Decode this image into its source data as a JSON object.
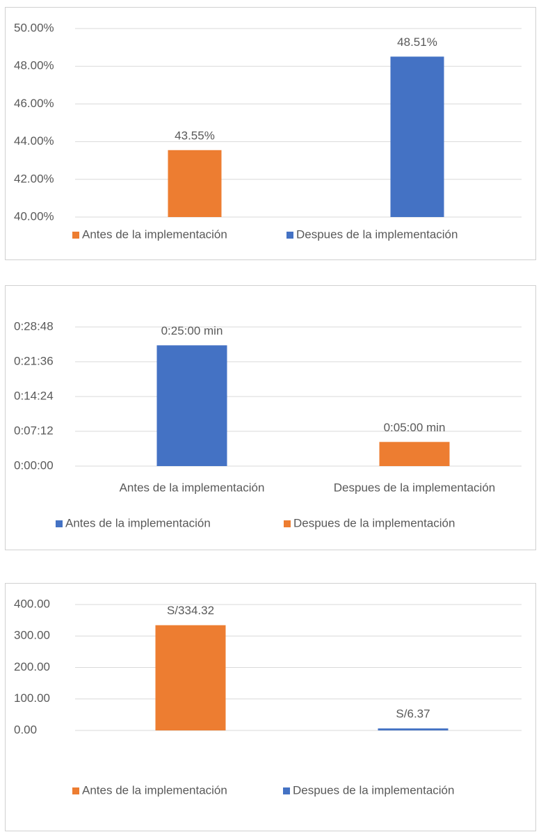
{
  "chart_data": [
    {
      "type": "bar",
      "categories": [
        null,
        null
      ],
      "series": [
        {
          "name": "Antes de la implementación",
          "color": "#ED7D31",
          "values": [
            43.55,
            null
          ],
          "value_labels": [
            "43.55%",
            null
          ]
        },
        {
          "name": "Despues de la implementación",
          "color": "#4472C4",
          "values": [
            null,
            48.51
          ],
          "value_labels": [
            null,
            "48.51%"
          ]
        }
      ],
      "ylim": [
        40,
        50
      ],
      "yticks": [
        {
          "value": 40,
          "label": "40.00%"
        },
        {
          "value": 42,
          "label": "42.00%"
        },
        {
          "value": 44,
          "label": "44.00%"
        },
        {
          "value": 46,
          "label": "46.00%"
        },
        {
          "value": 48,
          "label": "48.00%"
        },
        {
          "value": 50,
          "label": "50.00%"
        }
      ],
      "grid": true,
      "legend": "bottom"
    },
    {
      "type": "bar",
      "categories": [
        "Antes de la implementación",
        "Despues de la implementación"
      ],
      "series": [
        {
          "name": "Antes de la implementación",
          "color": "#4472C4",
          "values": [
            25,
            null
          ],
          "value_labels": [
            "0:25:00 min",
            null
          ]
        },
        {
          "name": "Despues de la implementación",
          "color": "#ED7D31",
          "values": [
            null,
            5
          ],
          "value_labels": [
            null,
            "0:05:00 min"
          ]
        }
      ],
      "ylim": [
        0,
        28.8
      ],
      "yticks": [
        {
          "value": 0,
          "label": "0:00:00"
        },
        {
          "value": 7.2,
          "label": "0:07:12"
        },
        {
          "value": 14.4,
          "label": "0:14:24"
        },
        {
          "value": 21.6,
          "label": "0:21:36"
        },
        {
          "value": 28.8,
          "label": "0:28:48"
        }
      ],
      "grid": true,
      "legend": "bottom"
    },
    {
      "type": "bar",
      "categories": [
        null,
        null
      ],
      "series": [
        {
          "name": "Antes de la implementación",
          "color": "#ED7D31",
          "values": [
            334.32,
            null
          ],
          "value_labels": [
            "S/334.32",
            null
          ]
        },
        {
          "name": "Despues de la implementación",
          "color": "#4472C4",
          "values": [
            null,
            6.37
          ],
          "value_labels": [
            null,
            "S/6.37"
          ]
        }
      ],
      "ylim": [
        0,
        400
      ],
      "yticks": [
        {
          "value": 0,
          "label": "0.00"
        },
        {
          "value": 100,
          "label": "100.00"
        },
        {
          "value": 200,
          "label": "200.00"
        },
        {
          "value": 300,
          "label": "300.00"
        },
        {
          "value": 400,
          "label": "400.00"
        }
      ],
      "grid": true,
      "legend": "bottom"
    }
  ]
}
